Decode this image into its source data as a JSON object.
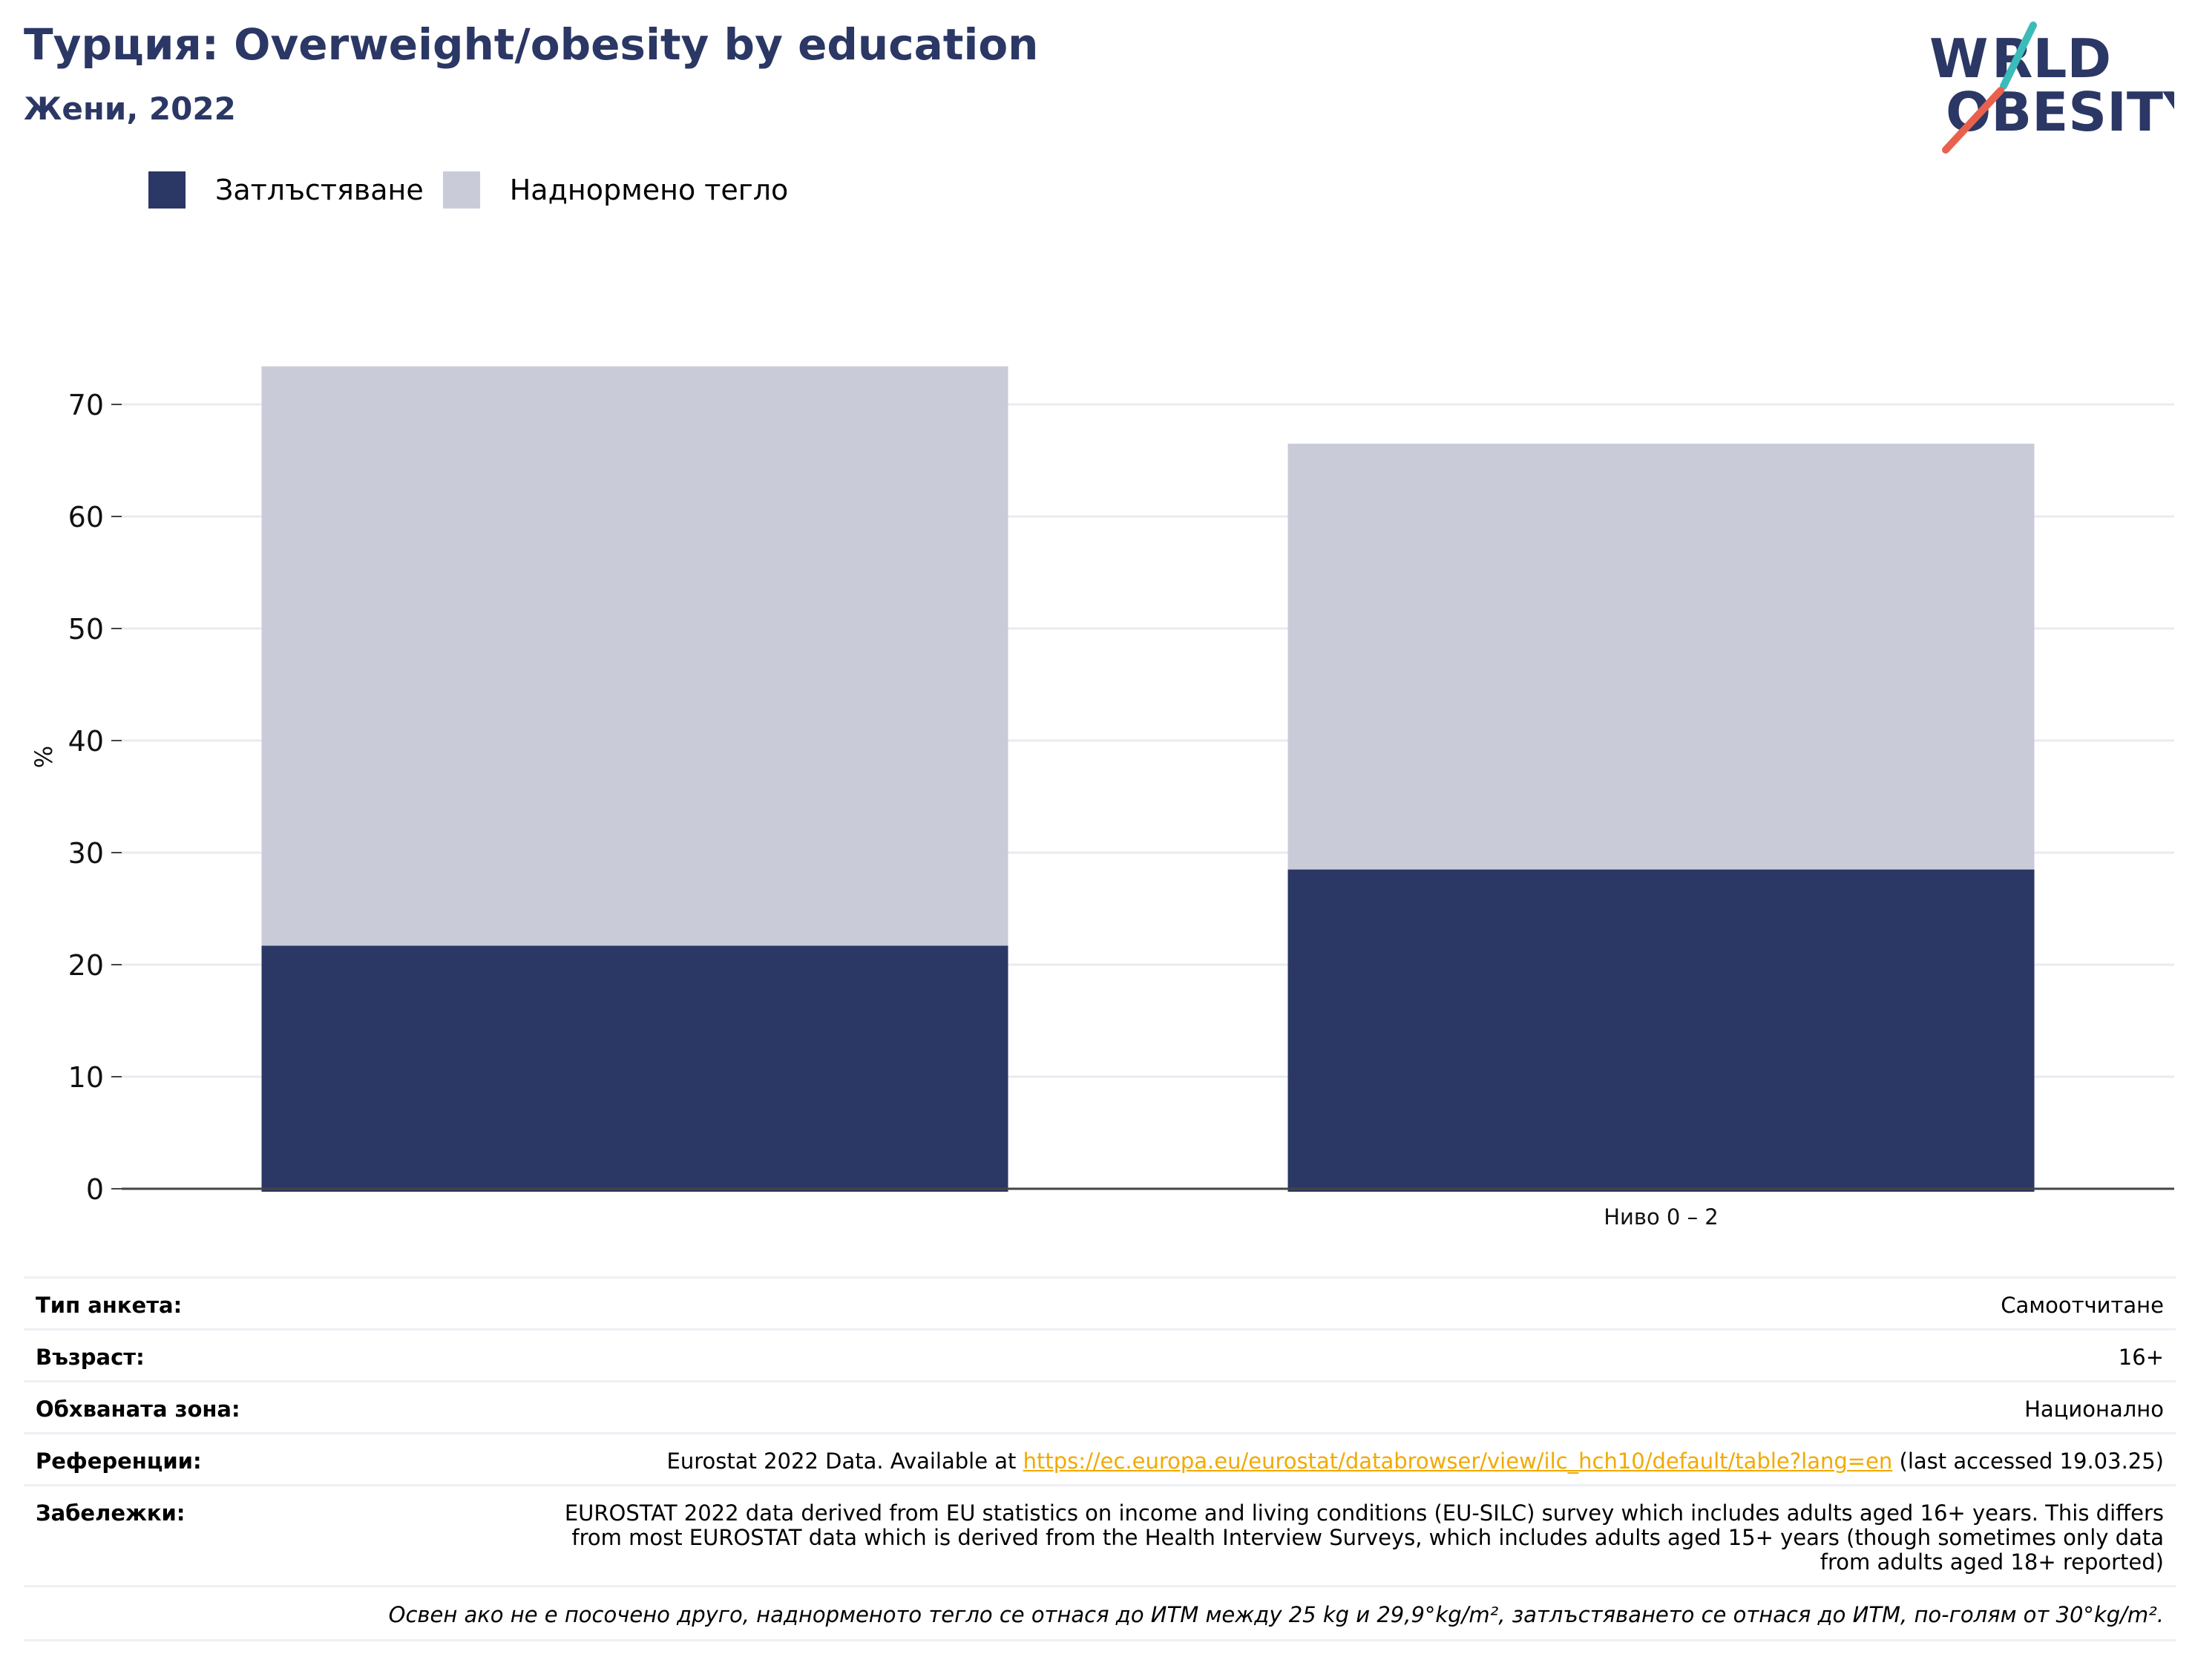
{
  "header": {
    "title": "Турция: Overweight/obesity by education",
    "subtitle": "Жени, 2022",
    "logo_text": "WORLD OBESITY"
  },
  "colors": {
    "obesity": "#2b3764",
    "overweight": "#c9ccd8",
    "title": "#2b3764",
    "link": "#f2a900",
    "grid": "#e9ebf1",
    "logo_teal": "#3bbcb9",
    "logo_red": "#e8614d"
  },
  "legend": {
    "obesity_label": "Затлъстяване",
    "overweight_label": "Наднормено тегло"
  },
  "chart_data": {
    "type": "bar",
    "stacked": true,
    "categories": [
      "",
      "Ниво 0 – 2"
    ],
    "series": [
      {
        "name": "Затлъстяване",
        "values": [
          21.7,
          28.5
        ]
      },
      {
        "name": "Наднормено тегло",
        "values": [
          51.7,
          38.0
        ]
      }
    ],
    "totals": [
      73.4,
      66.5
    ],
    "ylabel": "%",
    "xlabel": "",
    "ylim": [
      0,
      75
    ],
    "yticks": [
      0,
      10,
      20,
      30,
      40,
      50,
      60,
      70
    ],
    "grid": true,
    "legend_position": "top-left"
  },
  "info": {
    "survey_label": "Тип анкета:",
    "survey_value": "Самоотчитане",
    "age_label": "Възраст:",
    "age_value": "16+",
    "coverage_label": "Обхваната зона:",
    "coverage_value": "Национално",
    "references_label": "Референции:",
    "references_prefix": "Eurostat 2022 Data. Available at ",
    "references_link": "https://ec.europa.eu/eurostat/databrowser/view/ilc_hch10/default/table?lang=en",
    "references_suffix": " (last accessed 19.03.25)",
    "notes_label": "Забележки:",
    "notes_value": "EUROSTAT 2022 data derived from EU statistics on income and living conditions (EU-SILC) survey which includes adults aged 16+ years. This differs from most EUROSTAT data which is derived from the Health Interview Surveys, which includes adults aged 15+ years (though sometimes only data from adults aged 18+ reported)",
    "footnote": "Освен ако не е посочено друго, наднорменото тегло се отнася до ИТМ между 25 kg и 29,9°kg/m², затлъстяването се отнася до ИТМ, по-голям от 30°kg/m²."
  }
}
